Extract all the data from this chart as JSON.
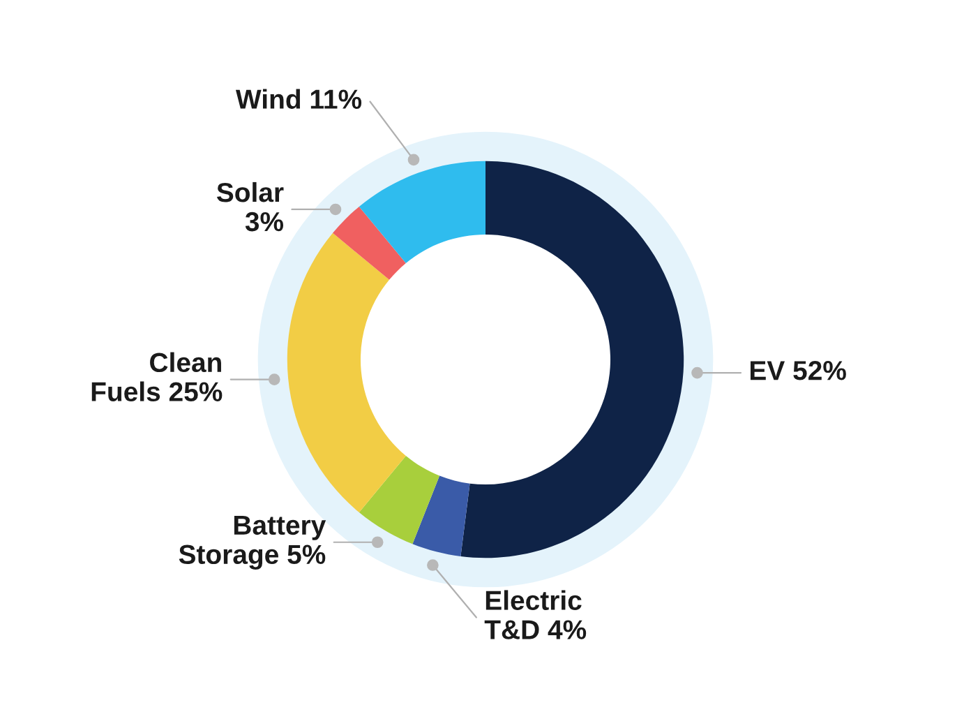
{
  "chart_data": {
    "type": "donut",
    "categories": [
      "EV 52%",
      "Electric\nT&D 4%",
      "Battery\nStorage 5%",
      "Clean\nFuels 25%",
      "Solar\n3%",
      "Wind 11%"
    ],
    "values": [
      52,
      4,
      5,
      25,
      3,
      11
    ],
    "colors": [
      "#0f2347",
      "#3a5ba8",
      "#a8cf3c",
      "#f2cd45",
      "#f06060",
      "#2fbcee"
    ],
    "legend": false
  }
}
